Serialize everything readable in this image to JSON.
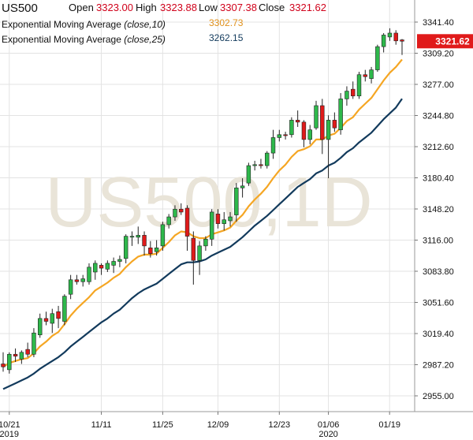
{
  "header": {
    "symbol": "US500",
    "open_label": "Open",
    "open_value": "3323.00",
    "high_label": "High",
    "high_value": "3323.88",
    "low_label": "Low",
    "low_value": "3307.38",
    "close_label": "Close",
    "close_value": "3321.62",
    "ema10_label": "Exponential Moving Average",
    "ema10_params": "(close,10)",
    "ema10_value": "3302.73",
    "ema25_label": "Exponential Moving Average",
    "ema25_params": "(close,25)",
    "ema25_value": "3262.15"
  },
  "watermark": "US500,1D",
  "last_price_tag": "3321.62",
  "colors": {
    "up": "#2eb84b",
    "down": "#e01a1a",
    "ema10": "#f5a623",
    "ema25": "#123a5c",
    "value_red": "#d0021b",
    "ema10_text": "#e0901a",
    "ema25_text": "#123a5c",
    "grid": "#e3e3e3"
  },
  "chart_data": {
    "type": "candlestick",
    "y_ticks": [
      "3341.40",
      "3309.20",
      "3277.00",
      "3244.80",
      "3212.60",
      "3180.40",
      "3148.20",
      "3116.00",
      "3083.80",
      "3051.60",
      "3019.40",
      "2987.20",
      "2955.00"
    ],
    "x_ticks": [
      {
        "label": "10/21",
        "sub": "2019",
        "date": "2019-10-21"
      },
      {
        "label": "11/11",
        "sub": "",
        "date": "2019-11-11"
      },
      {
        "label": "11/25",
        "sub": "",
        "date": "2019-11-25"
      },
      {
        "label": "12/09",
        "sub": "",
        "date": "2019-12-09"
      },
      {
        "label": "12/23",
        "sub": "",
        "date": "2019-12-23"
      },
      {
        "label": "01/06",
        "sub": "2020",
        "date": "2020-01-06"
      },
      {
        "label": "01/19",
        "sub": "",
        "date": "2020-01-19"
      }
    ],
    "ylim": [
      2950,
      3350
    ],
    "candles": [
      {
        "date": "2019-10-18",
        "o": 2988,
        "h": 3000,
        "l": 2980,
        "c": 2985
      },
      {
        "date": "2019-10-21",
        "o": 2982,
        "h": 3000,
        "l": 2978,
        "c": 2998
      },
      {
        "date": "2019-10-22",
        "o": 2998,
        "h": 3004,
        "l": 2990,
        "c": 2996
      },
      {
        "date": "2019-10-23",
        "o": 2993,
        "h": 3002,
        "l": 2988,
        "c": 3000
      },
      {
        "date": "2019-10-24",
        "o": 3003,
        "h": 3010,
        "l": 2995,
        "c": 2998
      },
      {
        "date": "2019-10-25",
        "o": 2998,
        "h": 3025,
        "l": 2995,
        "c": 3020
      },
      {
        "date": "2019-10-28",
        "o": 3018,
        "h": 3040,
        "l": 3015,
        "c": 3035
      },
      {
        "date": "2019-10-29",
        "o": 3035,
        "h": 3042,
        "l": 3028,
        "c": 3032
      },
      {
        "date": "2019-10-30",
        "o": 3030,
        "h": 3045,
        "l": 3020,
        "c": 3040
      },
      {
        "date": "2019-10-31",
        "o": 3042,
        "h": 3048,
        "l": 3025,
        "c": 3035
      },
      {
        "date": "2019-11-01",
        "o": 3032,
        "h": 3060,
        "l": 3028,
        "c": 3058
      },
      {
        "date": "2019-11-04",
        "o": 3060,
        "h": 3080,
        "l": 3055,
        "c": 3075
      },
      {
        "date": "2019-11-05",
        "o": 3075,
        "h": 3080,
        "l": 3070,
        "c": 3073
      },
      {
        "date": "2019-11-06",
        "o": 3073,
        "h": 3080,
        "l": 3068,
        "c": 3076
      },
      {
        "date": "2019-11-07",
        "o": 3073,
        "h": 3092,
        "l": 3070,
        "c": 3088
      },
      {
        "date": "2019-11-08",
        "o": 3083,
        "h": 3095,
        "l": 3075,
        "c": 3092
      },
      {
        "date": "2019-11-11",
        "o": 3090,
        "h": 3092,
        "l": 3080,
        "c": 3087
      },
      {
        "date": "2019-11-12",
        "o": 3086,
        "h": 3095,
        "l": 3083,
        "c": 3092
      },
      {
        "date": "2019-11-13",
        "o": 3090,
        "h": 3098,
        "l": 3082,
        "c": 3094
      },
      {
        "date": "2019-11-14",
        "o": 3094,
        "h": 3100,
        "l": 3088,
        "c": 3096
      },
      {
        "date": "2019-11-15",
        "o": 3097,
        "h": 3122,
        "l": 3092,
        "c": 3120
      },
      {
        "date": "2019-11-18",
        "o": 3119,
        "h": 3125,
        "l": 3110,
        "c": 3120
      },
      {
        "date": "2019-11-19",
        "o": 3119,
        "h": 3130,
        "l": 3112,
        "c": 3121
      },
      {
        "date": "2019-11-20",
        "o": 3121,
        "h": 3125,
        "l": 3100,
        "c": 3110
      },
      {
        "date": "2019-11-21",
        "o": 3108,
        "h": 3115,
        "l": 3098,
        "c": 3102
      },
      {
        "date": "2019-11-22",
        "o": 3104,
        "h": 3116,
        "l": 3100,
        "c": 3108
      },
      {
        "date": "2019-11-25",
        "o": 3110,
        "h": 3135,
        "l": 3105,
        "c": 3132
      },
      {
        "date": "2019-11-26",
        "o": 3132,
        "h": 3143,
        "l": 3128,
        "c": 3140
      },
      {
        "date": "2019-11-27",
        "o": 3140,
        "h": 3152,
        "l": 3136,
        "c": 3148
      },
      {
        "date": "2019-11-29",
        "o": 3148,
        "h": 3154,
        "l": 3142,
        "c": 3145
      },
      {
        "date": "2019-12-02",
        "o": 3149,
        "h": 3152,
        "l": 3105,
        "c": 3120
      },
      {
        "date": "2019-12-03",
        "o": 3118,
        "h": 3125,
        "l": 3070,
        "c": 3095
      },
      {
        "date": "2019-12-04",
        "o": 3095,
        "h": 3115,
        "l": 3080,
        "c": 3110
      },
      {
        "date": "2019-12-05",
        "o": 3110,
        "h": 3120,
        "l": 3105,
        "c": 3117
      },
      {
        "date": "2019-12-06",
        "o": 3117,
        "h": 3148,
        "l": 3110,
        "c": 3145
      },
      {
        "date": "2019-12-09",
        "o": 3143,
        "h": 3148,
        "l": 3128,
        "c": 3133
      },
      {
        "date": "2019-12-10",
        "o": 3133,
        "h": 3145,
        "l": 3126,
        "c": 3137
      },
      {
        "date": "2019-12-11",
        "o": 3136,
        "h": 3145,
        "l": 3130,
        "c": 3140
      },
      {
        "date": "2019-12-12",
        "o": 3142,
        "h": 3175,
        "l": 3135,
        "c": 3170
      },
      {
        "date": "2019-12-13",
        "o": 3170,
        "h": 3180,
        "l": 3160,
        "c": 3172
      },
      {
        "date": "2019-12-16",
        "o": 3175,
        "h": 3196,
        "l": 3172,
        "c": 3193
      },
      {
        "date": "2019-12-17",
        "o": 3193,
        "h": 3198,
        "l": 3188,
        "c": 3194
      },
      {
        "date": "2019-12-18",
        "o": 3194,
        "h": 3200,
        "l": 3190,
        "c": 3193
      },
      {
        "date": "2019-12-19",
        "o": 3193,
        "h": 3208,
        "l": 3190,
        "c": 3206
      },
      {
        "date": "2019-12-20",
        "o": 3206,
        "h": 3230,
        "l": 3200,
        "c": 3222
      },
      {
        "date": "2019-12-23",
        "o": 3222,
        "h": 3230,
        "l": 3218,
        "c": 3225
      },
      {
        "date": "2019-12-24",
        "o": 3225,
        "h": 3228,
        "l": 3220,
        "c": 3224
      },
      {
        "date": "2019-12-26",
        "o": 3225,
        "h": 3243,
        "l": 3222,
        "c": 3240
      },
      {
        "date": "2019-12-27",
        "o": 3240,
        "h": 3250,
        "l": 3233,
        "c": 3238
      },
      {
        "date": "2019-12-30",
        "o": 3238,
        "h": 3240,
        "l": 3212,
        "c": 3220
      },
      {
        "date": "2019-12-31",
        "o": 3220,
        "h": 3235,
        "l": 3215,
        "c": 3230
      },
      {
        "date": "2020-01-02",
        "o": 3232,
        "h": 3260,
        "l": 3230,
        "c": 3255
      },
      {
        "date": "2020-01-03",
        "o": 3255,
        "h": 3262,
        "l": 3205,
        "c": 3220
      },
      {
        "date": "2020-01-06",
        "o": 3220,
        "h": 3245,
        "l": 3180,
        "c": 3240
      },
      {
        "date": "2020-01-07",
        "o": 3240,
        "h": 3248,
        "l": 3228,
        "c": 3232
      },
      {
        "date": "2020-01-08",
        "o": 3230,
        "h": 3268,
        "l": 3225,
        "c": 3262
      },
      {
        "date": "2020-01-09",
        "o": 3262,
        "h": 3275,
        "l": 3255,
        "c": 3270
      },
      {
        "date": "2020-01-10",
        "o": 3272,
        "h": 3280,
        "l": 3262,
        "c": 3265
      },
      {
        "date": "2020-01-13",
        "o": 3265,
        "h": 3290,
        "l": 3262,
        "c": 3287
      },
      {
        "date": "2020-01-14",
        "o": 3287,
        "h": 3292,
        "l": 3280,
        "c": 3285
      },
      {
        "date": "2020-01-15",
        "o": 3283,
        "h": 3295,
        "l": 3278,
        "c": 3292
      },
      {
        "date": "2020-01-16",
        "o": 3292,
        "h": 3318,
        "l": 3290,
        "c": 3316
      },
      {
        "date": "2020-01-17",
        "o": 3316,
        "h": 3330,
        "l": 3310,
        "c": 3328
      },
      {
        "date": "2020-01-20",
        "o": 3326,
        "h": 3335,
        "l": 3322,
        "c": 3330
      },
      {
        "date": "2020-01-21",
        "o": 3330,
        "h": 3333,
        "l": 3318,
        "c": 3322
      },
      {
        "date": "2020-01-22",
        "o": 3323,
        "h": 3323.88,
        "l": 3307.38,
        "c": 3321.62
      }
    ],
    "ema10": [
      2985,
      2989,
      2991,
      2993,
      2994,
      2999,
      3006,
      3011,
      3017,
      3021,
      3029,
      3038,
      3045,
      3051,
      3057,
      3064,
      3068,
      3072,
      3077,
      3081,
      3088,
      3094,
      3099,
      3101,
      3101,
      3102,
      3108,
      3114,
      3121,
      3125,
      3124,
      3120,
      3118,
      3118,
      3122,
      3124,
      3126,
      3129,
      3136,
      3142,
      3151,
      3158,
      3164,
      3171,
      3180,
      3188,
      3194,
      3202,
      3208,
      3210,
      3213,
      3220,
      3220,
      3224,
      3226,
      3232,
      3239,
      3243,
      3251,
      3257,
      3263,
      3272,
      3281,
      3289,
      3295,
      3302.73
    ],
    "ema25": [
      2962,
      2965,
      2968,
      2971,
      2974,
      2978,
      2983,
      2987,
      2991,
      2995,
      3000,
      3006,
      3011,
      3016,
      3021,
      3026,
      3031,
      3035,
      3040,
      3044,
      3050,
      3056,
      3061,
      3065,
      3068,
      3071,
      3076,
      3081,
      3086,
      3091,
      3093,
      3093,
      3094,
      3096,
      3100,
      3103,
      3106,
      3109,
      3114,
      3119,
      3125,
      3131,
      3136,
      3141,
      3147,
      3153,
      3159,
      3165,
      3171,
      3175,
      3179,
      3185,
      3188,
      3193,
      3196,
      3201,
      3207,
      3211,
      3217,
      3222,
      3227,
      3234,
      3241,
      3247,
      3253,
      3262.15
    ]
  }
}
